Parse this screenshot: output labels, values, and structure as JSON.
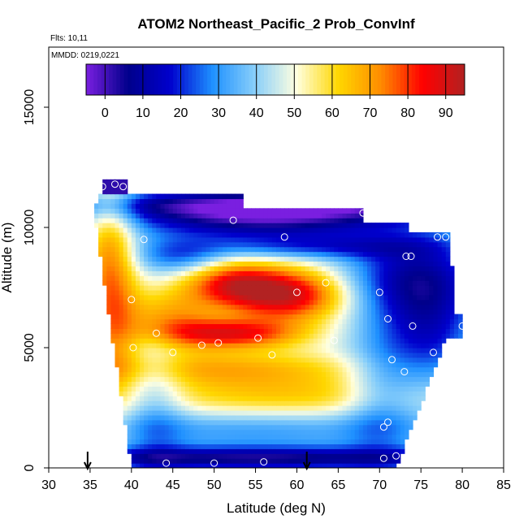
{
  "chart_data": {
    "type": "heatmap",
    "title": "ATOM2 Northeast_Pacific_2 Prob_ConvInf",
    "flights_label": "Flts: 10,11",
    "dates_label": "MMDD: 0219,0221",
    "xlabel": "Latitude (deg N)",
    "ylabel": "Altitude (m)",
    "xlim": [
      30,
      85
    ],
    "ylim": [
      0,
      17500
    ],
    "x_ticks": [
      30,
      35,
      40,
      45,
      50,
      55,
      60,
      65,
      70,
      75,
      80,
      85
    ],
    "y_ticks": [
      0,
      5000,
      10000,
      15000
    ],
    "colorbar": {
      "range": [
        -5,
        95
      ],
      "ticks": [
        0,
        10,
        20,
        30,
        40,
        50,
        60,
        70,
        80,
        90
      ],
      "colors": [
        "#7a1fe0",
        "#00008b",
        "#0000cd",
        "#1e90ff",
        "#87cefa",
        "#ffffe0",
        "#ffd700",
        "#ff8c00",
        "#ff0000",
        "#b22222"
      ]
    },
    "arrows_latitude": [
      34.7,
      61.2
    ],
    "profile_points": [
      {
        "lat": 36.5,
        "alt": 11700
      },
      {
        "lat": 38,
        "alt": 11800
      },
      {
        "lat": 39,
        "alt": 11700
      },
      {
        "lat": 52.3,
        "alt": 10300
      },
      {
        "lat": 58.5,
        "alt": 9600
      },
      {
        "lat": 68,
        "alt": 10600
      },
      {
        "lat": 74,
        "alt": 10000
      },
      {
        "lat": 77,
        "alt": 9600
      },
      {
        "lat": 78,
        "alt": 9600
      },
      {
        "lat": 73.2,
        "alt": 8800
      },
      {
        "lat": 73.8,
        "alt": 8800
      },
      {
        "lat": 41.5,
        "alt": 9500
      },
      {
        "lat": 63.5,
        "alt": 7700
      },
      {
        "lat": 60,
        "alt": 7300
      },
      {
        "lat": 70,
        "alt": 7300
      },
      {
        "lat": 71,
        "alt": 6200
      },
      {
        "lat": 74,
        "alt": 5900
      },
      {
        "lat": 80,
        "alt": 5900
      },
      {
        "lat": 43,
        "alt": 5600
      },
      {
        "lat": 55.3,
        "alt": 5400
      },
      {
        "lat": 64.5,
        "alt": 5300
      },
      {
        "lat": 50.5,
        "alt": 5200
      },
      {
        "lat": 48.5,
        "alt": 5100
      },
      {
        "lat": 45,
        "alt": 4800
      },
      {
        "lat": 57,
        "alt": 4700
      },
      {
        "lat": 76.5,
        "alt": 4800
      },
      {
        "lat": 71.5,
        "alt": 4500
      },
      {
        "lat": 73,
        "alt": 4000
      },
      {
        "lat": 71,
        "alt": 1900
      },
      {
        "lat": 70.5,
        "alt": 1700
      },
      {
        "lat": 40.2,
        "alt": 5000
      },
      {
        "lat": 40,
        "alt": 7000
      },
      {
        "lat": 44.2,
        "alt": 200
      },
      {
        "lat": 50,
        "alt": 200
      },
      {
        "lat": 56,
        "alt": 250
      },
      {
        "lat": 70.5,
        "alt": 400
      },
      {
        "lat": 72,
        "alt": 500
      }
    ]
  }
}
